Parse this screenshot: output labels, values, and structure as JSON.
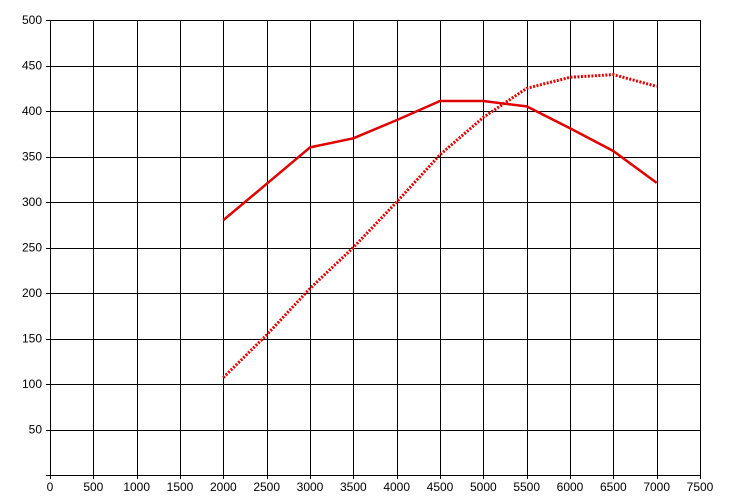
{
  "chart_data": {
    "type": "line",
    "title": "",
    "xlabel": "",
    "ylabel": "",
    "xlim": [
      0,
      7500
    ],
    "ylim": [
      0,
      500
    ],
    "x_ticks": [
      0,
      500,
      1000,
      1500,
      2000,
      2500,
      3000,
      3500,
      4000,
      4500,
      5000,
      5500,
      6000,
      6500,
      7000,
      7500
    ],
    "y_ticks": [
      50,
      100,
      150,
      200,
      250,
      300,
      350,
      400,
      450,
      500
    ],
    "grid": true,
    "legend": "none",
    "series": [
      {
        "style": "solid",
        "color": "#e00000",
        "points": [
          [
            2000,
            280
          ],
          [
            2500,
            320
          ],
          [
            3000,
            360
          ],
          [
            3500,
            370
          ],
          [
            4000,
            390
          ],
          [
            4500,
            411
          ],
          [
            5000,
            411
          ],
          [
            5500,
            405
          ],
          [
            6000,
            381
          ],
          [
            6500,
            356
          ],
          [
            7000,
            321
          ]
        ]
      },
      {
        "style": "dotted",
        "color": "#e00000",
        "points": [
          [
            2000,
            107
          ],
          [
            2500,
            154
          ],
          [
            3000,
            205
          ],
          [
            3500,
            250
          ],
          [
            4000,
            300
          ],
          [
            4500,
            352
          ],
          [
            5000,
            393
          ],
          [
            5500,
            425
          ],
          [
            6000,
            437
          ],
          [
            6500,
            440
          ],
          [
            7000,
            427
          ]
        ]
      }
    ]
  }
}
